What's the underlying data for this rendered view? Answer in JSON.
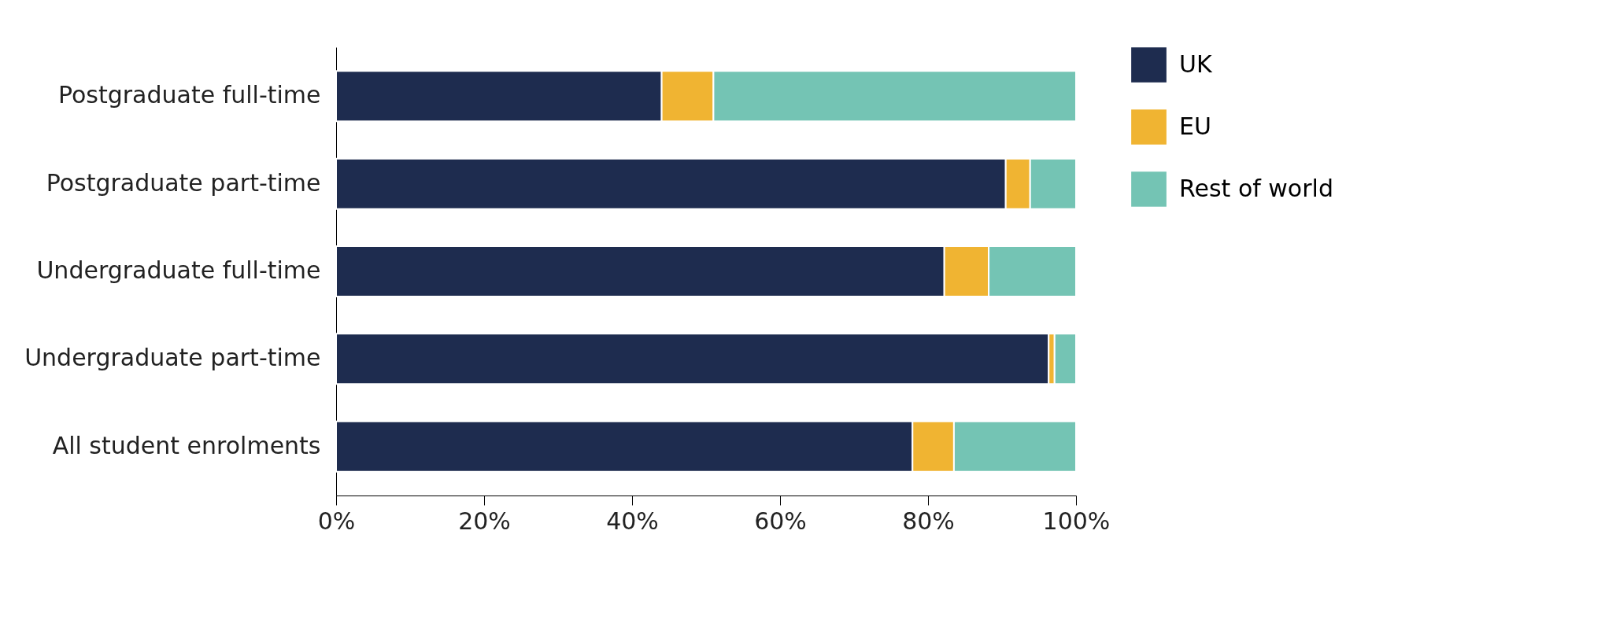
{
  "chart_data": {
    "type": "bar",
    "orientation": "horizontal",
    "stacked": true,
    "categories": [
      "Postgraduate full-time",
      "Postgraduate part-time",
      "Undergraduate full-time",
      "Undergraduate part-time",
      "All student enrolments"
    ],
    "series": [
      {
        "name": "UK",
        "color": "#1e2c4f",
        "values": [
          44.0,
          90.5,
          82.2,
          96.3,
          77.9
        ]
      },
      {
        "name": "EU",
        "color": "#f0b432",
        "values": [
          7.0,
          3.3,
          6.0,
          0.8,
          5.6
        ]
      },
      {
        "name": "Rest of world",
        "color": "#74c4b4",
        "values": [
          49.0,
          6.2,
          11.8,
          2.9,
          16.5
        ]
      }
    ],
    "xlim": [
      0,
      100
    ],
    "xticks": [
      {
        "value": 0,
        "label": "0%"
      },
      {
        "value": 20,
        "label": "20%"
      },
      {
        "value": 40,
        "label": "40%"
      },
      {
        "value": 60,
        "label": "60%"
      },
      {
        "value": 80,
        "label": "80%"
      },
      {
        "value": 100,
        "label": "100%"
      }
    ],
    "grid": false,
    "legend": "right"
  }
}
